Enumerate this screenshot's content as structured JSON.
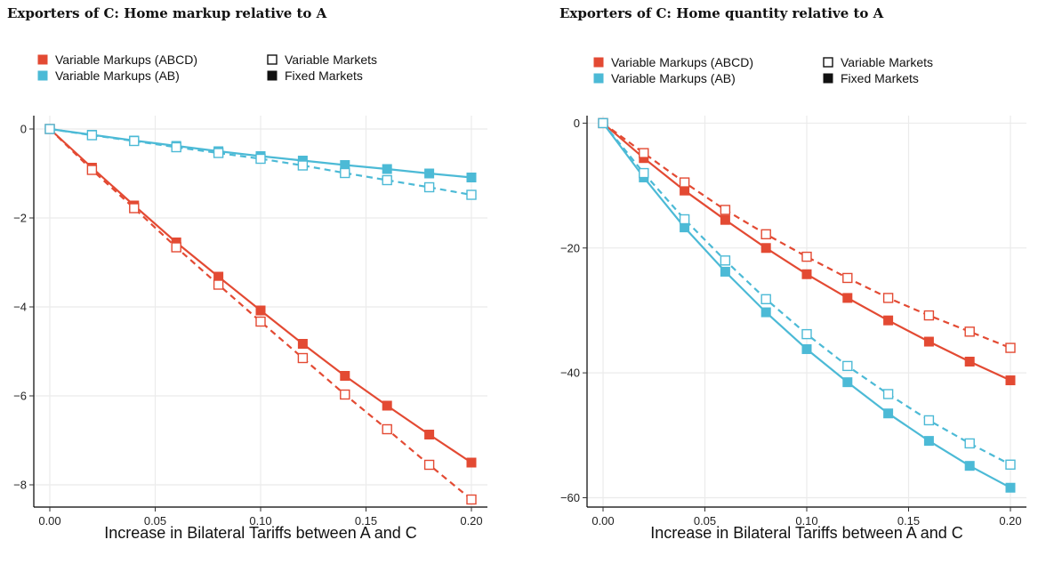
{
  "colors": {
    "abcd": "#e34a33",
    "ab": "#4cbad6",
    "legend_shape": "#111111",
    "grid": "#ebebeb"
  },
  "legend": {
    "colors": [
      {
        "label": "Variable Markups (ABCD)",
        "color": "#e34a33"
      },
      {
        "label": "Variable Markups (AB)",
        "color": "#4cbad6"
      }
    ],
    "shapes": [
      {
        "label": "Variable Markets",
        "shape": "open-square"
      },
      {
        "label": "Fixed Markets",
        "shape": "filled-square"
      }
    ]
  },
  "chart_data": [
    {
      "type": "line",
      "title": "Exporters of C: Home markup relative to A",
      "xlabel": "Increase in Bilateral Tariffs between A and C",
      "ylabel": "",
      "xlim": [
        0,
        0.2
      ],
      "ylim": [
        -8.5,
        0.3
      ],
      "x_ticks": [
        0,
        0.05,
        0.1,
        0.15,
        0.2
      ],
      "x_tick_labels": [
        "0.00",
        "0.05",
        "0.10",
        "0.15",
        "0.20"
      ],
      "y_ticks": [
        0,
        -2,
        -4,
        -6,
        -8
      ],
      "y_tick_labels": [
        "0",
        "−2",
        "−4",
        "−6",
        "−8"
      ],
      "grid": true,
      "x": [
        0,
        0.02,
        0.04,
        0.06,
        0.08,
        0.1,
        0.12,
        0.14,
        0.16,
        0.18,
        0.2
      ],
      "series": [
        {
          "name": "Variable Markups (ABCD)",
          "markets": "Fixed Markets",
          "color_key": "abcd",
          "dashed": false,
          "marker": "filled",
          "values": [
            0,
            -0.87,
            -1.72,
            -2.55,
            -3.32,
            -4.08,
            -4.83,
            -5.55,
            -6.22,
            -6.87,
            -7.5
          ]
        },
        {
          "name": "Variable Markups (ABCD)",
          "markets": "Variable Markets",
          "color_key": "abcd",
          "dashed": true,
          "marker": "open",
          "values": [
            0,
            -0.92,
            -1.78,
            -2.66,
            -3.5,
            -4.33,
            -5.15,
            -5.97,
            -6.75,
            -7.55,
            -8.33
          ]
        },
        {
          "name": "Variable Markups (AB)",
          "markets": "Fixed Markets",
          "color_key": "ab",
          "dashed": false,
          "marker": "filled",
          "values": [
            0,
            -0.13,
            -0.26,
            -0.38,
            -0.5,
            -0.61,
            -0.71,
            -0.81,
            -0.9,
            -1.0,
            -1.09
          ]
        },
        {
          "name": "Variable Markups (AB)",
          "markets": "Variable Markets",
          "color_key": "ab",
          "dashed": true,
          "marker": "open",
          "values": [
            0,
            -0.14,
            -0.27,
            -0.41,
            -0.54,
            -0.67,
            -0.82,
            -0.99,
            -1.15,
            -1.31,
            -1.48
          ]
        }
      ]
    },
    {
      "type": "line",
      "title": "Exporters of C: Home quantity relative to A",
      "xlabel": "Increase in Bilateral Tariffs between A and C",
      "ylabel": "",
      "xlim": [
        0,
        0.2
      ],
      "ylim": [
        -61.5,
        1.2
      ],
      "x_ticks": [
        0,
        0.05,
        0.1,
        0.15,
        0.2
      ],
      "x_tick_labels": [
        "0.00",
        "0.05",
        "0.10",
        "0.15",
        "0.20"
      ],
      "y_ticks": [
        0,
        -20,
        -40,
        -60
      ],
      "y_tick_labels": [
        "0",
        "−20",
        "−40",
        "−60"
      ],
      "grid": true,
      "x": [
        0,
        0.02,
        0.04,
        0.06,
        0.08,
        0.1,
        0.12,
        0.14,
        0.16,
        0.18,
        0.2
      ],
      "series": [
        {
          "name": "Variable Markups (ABCD)",
          "markets": "Fixed Markets",
          "color_key": "abcd",
          "dashed": false,
          "marker": "filled",
          "values": [
            0,
            -5.6,
            -10.8,
            -15.5,
            -20.0,
            -24.2,
            -28.0,
            -31.6,
            -35.0,
            -38.2,
            -41.2
          ]
        },
        {
          "name": "Variable Markups (ABCD)",
          "markets": "Variable Markets",
          "color_key": "abcd",
          "dashed": true,
          "marker": "open",
          "values": [
            0,
            -4.8,
            -9.5,
            -13.9,
            -17.8,
            -21.4,
            -24.8,
            -28.0,
            -30.8,
            -33.4,
            -36.0
          ]
        },
        {
          "name": "Variable Markups (AB)",
          "markets": "Fixed Markets",
          "color_key": "ab",
          "dashed": false,
          "marker": "filled",
          "values": [
            0,
            -8.7,
            -16.7,
            -23.8,
            -30.3,
            -36.2,
            -41.5,
            -46.5,
            -50.9,
            -54.9,
            -58.4
          ]
        },
        {
          "name": "Variable Markups (AB)",
          "markets": "Variable Markets",
          "color_key": "ab",
          "dashed": true,
          "marker": "open",
          "values": [
            0,
            -8.0,
            -15.4,
            -22.0,
            -28.2,
            -33.8,
            -38.9,
            -43.4,
            -47.6,
            -51.3,
            -54.7
          ]
        }
      ]
    }
  ]
}
